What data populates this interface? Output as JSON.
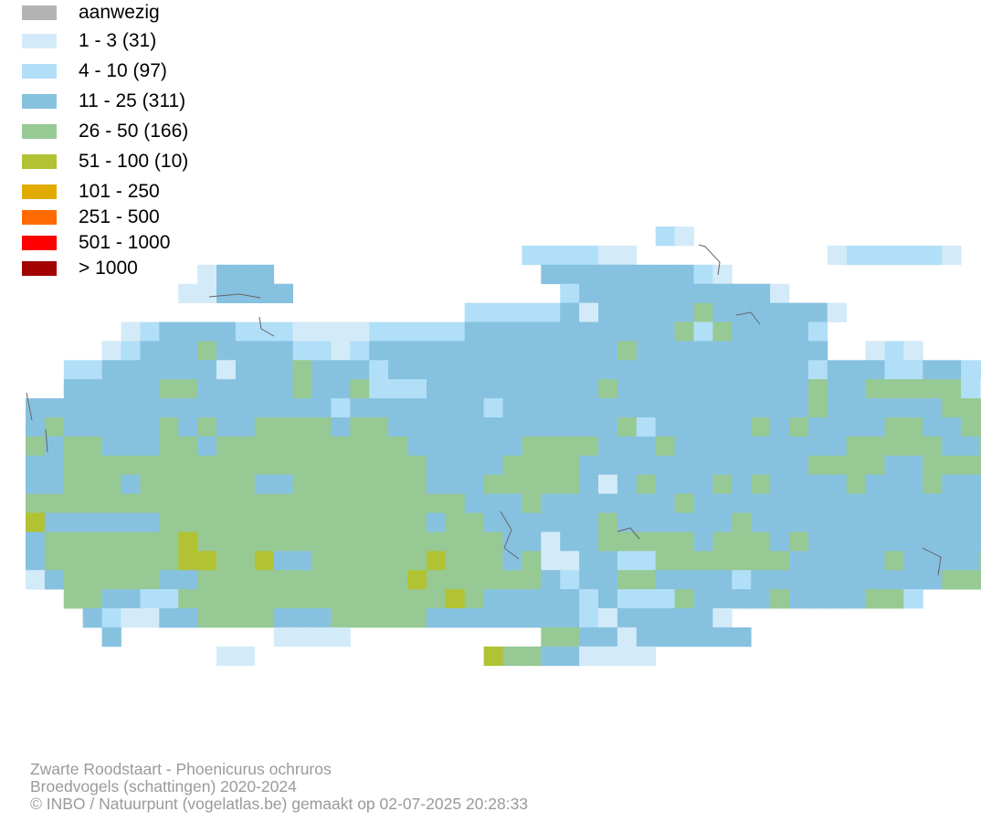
{
  "legend": {
    "items": [
      {
        "label": "aanwezig",
        "color": "#b3b3b3"
      },
      {
        "label": "1 - 3 (31)",
        "color": "#d3ebf8"
      },
      {
        "label": "4 - 10 (97)",
        "color": "#b1dff7"
      },
      {
        "label": "11 - 25 (311)",
        "color": "#87c1e0"
      },
      {
        "label": "26 - 50 (166)",
        "color": "#97c994"
      },
      {
        "label": "51 - 100 (10)",
        "color": "#b1c233"
      },
      {
        "label": "101 - 250",
        "color": "#e2ab00"
      },
      {
        "label": "251 - 500",
        "color": "#ff6a00"
      },
      {
        "label": "501 - 1000",
        "color": "#ff0000"
      },
      {
        "label": "> 1000",
        "color": "#a30000"
      }
    ]
  },
  "footer": {
    "species": "Zwarte Roodstaart - Phoenicurus ochruros",
    "dataset": "Broedvogels (schattingen) 2020-2024",
    "credit": "© INBO / Natuurpunt (vogelatlas.be) gemaakt op 02-07-2025 20:28:33"
  }
}
